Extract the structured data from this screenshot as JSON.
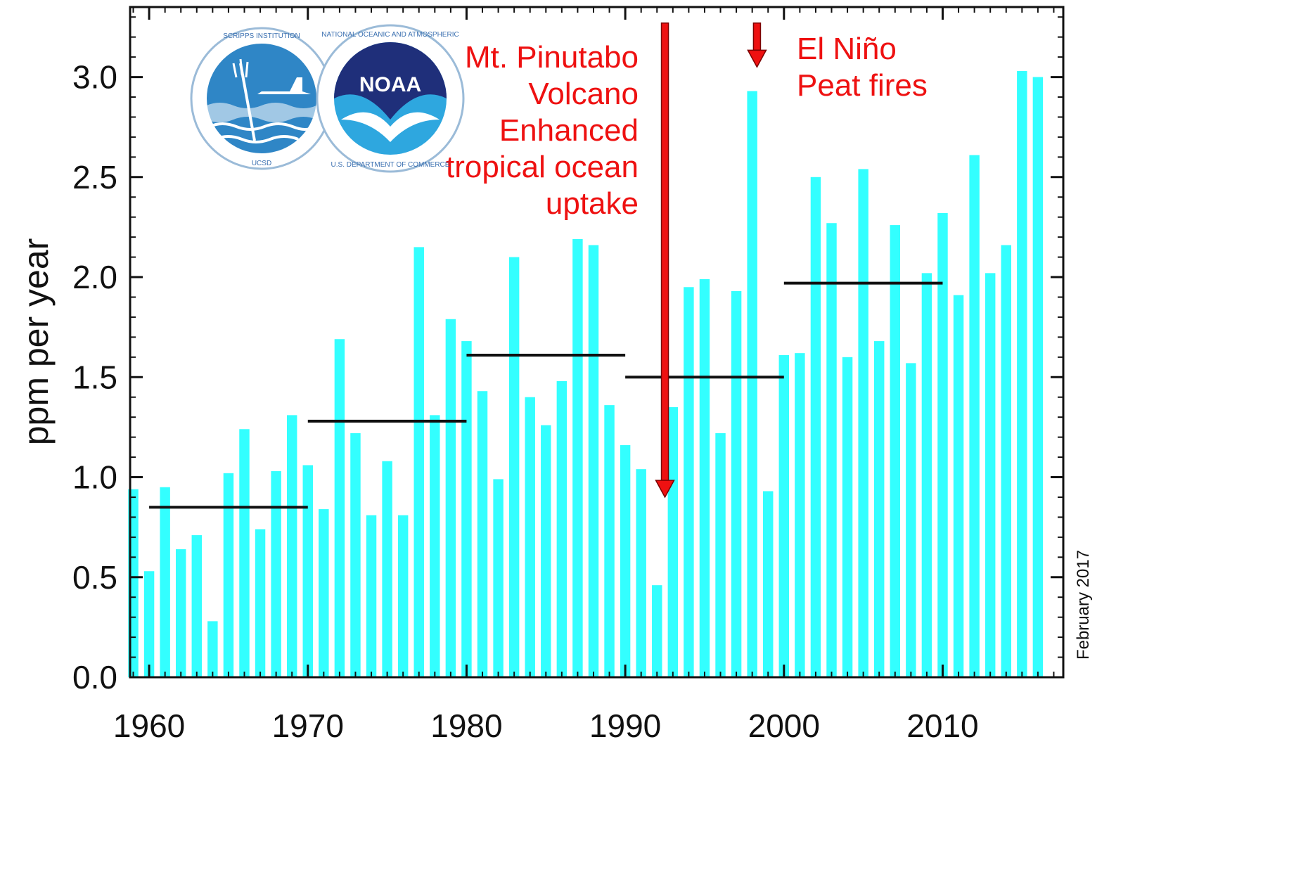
{
  "chart_data": {
    "type": "bar",
    "ylabel": "ppm per year",
    "xlim": [
      1958.8,
      2017.6
    ],
    "ylim": [
      0,
      3.35
    ],
    "x_ticks": [
      1960,
      1970,
      1980,
      1990,
      2000,
      2010
    ],
    "x_tick_labels": [
      "1960",
      "1970",
      "1980",
      "1990",
      "2000",
      "2010"
    ],
    "y_ticks": [
      0.0,
      0.5,
      1.0,
      1.5,
      2.0,
      2.5,
      3.0
    ],
    "y_tick_labels": [
      "0.0",
      "0.5",
      "1.0",
      "1.5",
      "2.0",
      "2.5",
      "3.0"
    ],
    "bar_color": "#33ffff",
    "years": [
      1959,
      1960,
      1961,
      1962,
      1963,
      1964,
      1965,
      1966,
      1967,
      1968,
      1969,
      1970,
      1971,
      1972,
      1973,
      1974,
      1975,
      1976,
      1977,
      1978,
      1979,
      1980,
      1981,
      1982,
      1983,
      1984,
      1985,
      1986,
      1987,
      1988,
      1989,
      1990,
      1991,
      1992,
      1993,
      1994,
      1995,
      1996,
      1997,
      1998,
      1999,
      2000,
      2001,
      2002,
      2003,
      2004,
      2005,
      2006,
      2007,
      2008,
      2009,
      2010,
      2011,
      2012,
      2013,
      2014,
      2015,
      2016
    ],
    "values": [
      0.94,
      0.53,
      0.95,
      0.64,
      0.71,
      0.28,
      1.02,
      1.24,
      0.74,
      1.03,
      1.31,
      1.06,
      0.84,
      1.69,
      1.22,
      0.81,
      1.08,
      0.81,
      2.15,
      1.31,
      1.79,
      1.68,
      1.43,
      0.99,
      2.1,
      1.4,
      1.26,
      1.48,
      2.19,
      2.16,
      1.36,
      1.16,
      1.04,
      0.46,
      1.35,
      1.95,
      1.99,
      1.22,
      1.93,
      2.93,
      0.93,
      1.61,
      1.62,
      2.5,
      2.27,
      1.6,
      2.54,
      1.68,
      2.26,
      1.57,
      2.02,
      2.32,
      1.91,
      2.61,
      2.02,
      2.16,
      3.03,
      3.0
    ],
    "decadal_means": [
      {
        "from": 1960,
        "to": 1970,
        "value": 0.85
      },
      {
        "from": 1970,
        "to": 1980,
        "value": 1.28
      },
      {
        "from": 1980,
        "to": 1990,
        "value": 1.61
      },
      {
        "from": 1990,
        "to": 2000,
        "value": 1.5
      },
      {
        "from": 2000,
        "to": 2010,
        "value": 1.97
      }
    ],
    "annotations": [
      {
        "lines": [
          "Mt. Pinutabo",
          "Volcano",
          "Enhanced",
          "tropical ocean",
          "uptake"
        ],
        "arrow_x": 1992.5,
        "arrow_top": 3.27,
        "arrow_bottom": 0.9,
        "color": "#ee1111"
      },
      {
        "lines": [
          "El Niño",
          "Peat fires"
        ],
        "arrow_x": 1998.3,
        "arrow_top": 3.27,
        "arrow_bottom": 3.05,
        "color": "#ee1111"
      }
    ],
    "side_note": "February 2017"
  },
  "logos": {
    "scripps": {
      "ring_text": "SCRIPPS INSTITUTION OF OCEANOGRAPHY",
      "bottom_text": "UCSD"
    },
    "noaa": {
      "center_text": "NOAA",
      "ring_text": "NATIONAL OCEANIC AND ATMOSPHERIC ADMINISTRATION",
      "bottom_text": "U.S. DEPARTMENT OF COMMERCE"
    }
  }
}
